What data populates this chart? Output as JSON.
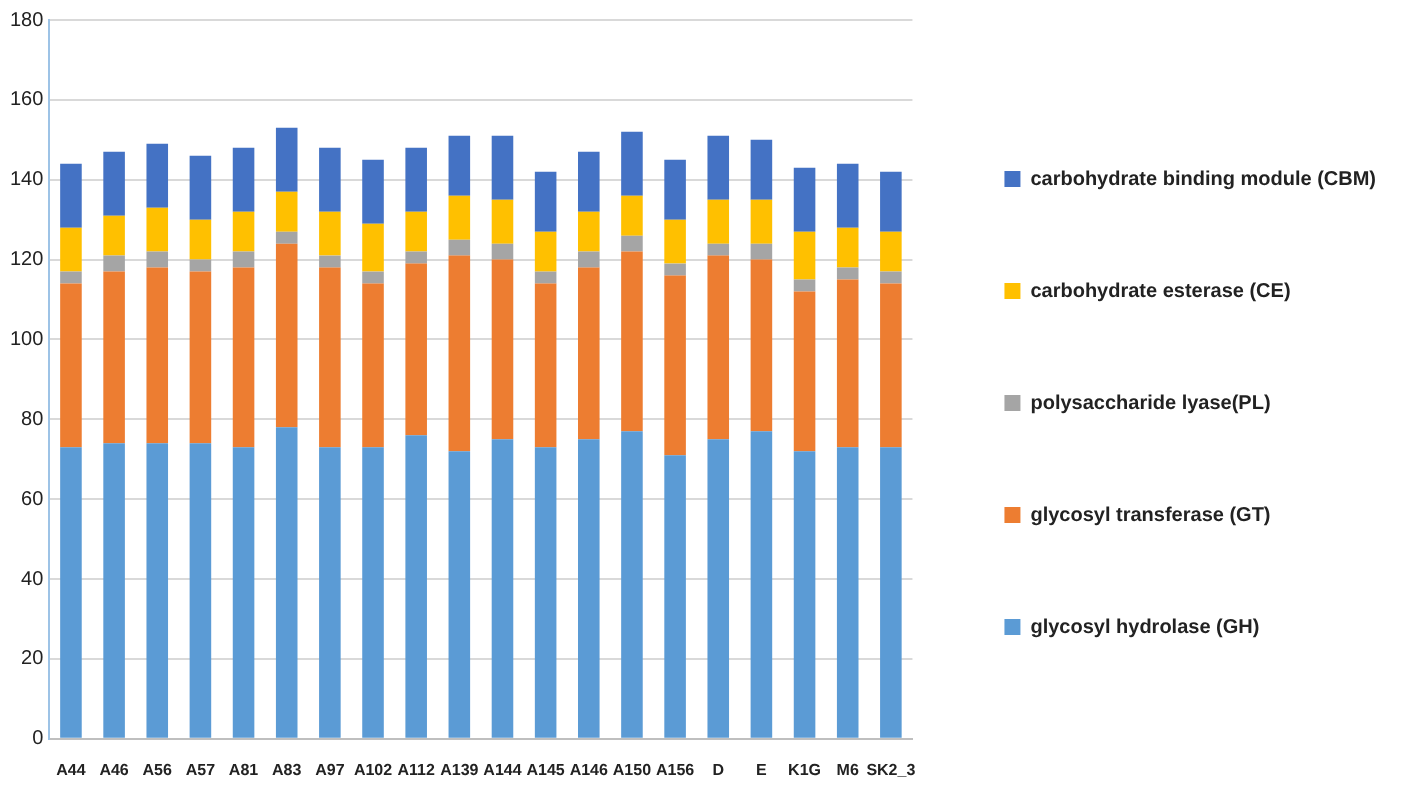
{
  "chart_data": {
    "type": "bar",
    "stacked": true,
    "categories": [
      "A44",
      "A46",
      "A56",
      "A57",
      "A81",
      "A83",
      "A97",
      "A102",
      "A112",
      "A139",
      "A144",
      "A145",
      "A146",
      "A150",
      "A156",
      "D",
      "E",
      "K1G",
      "M6",
      "SK2_3"
    ],
    "series": [
      {
        "name": "glycosyl hydrolase (GH)",
        "color": "#5b9bd5",
        "values": [
          73,
          74,
          74,
          74,
          73,
          78,
          73,
          73,
          76,
          72,
          75,
          73,
          75,
          77,
          71,
          75,
          77,
          72,
          73,
          73
        ]
      },
      {
        "name": "glycosyl transferase (GT)",
        "color": "#ed7d31",
        "values": [
          41,
          43,
          44,
          43,
          45,
          46,
          45,
          41,
          43,
          49,
          45,
          41,
          43,
          45,
          45,
          46,
          43,
          40,
          42,
          41
        ]
      },
      {
        "name": "polysaccharide lyase(PL)",
        "color": "#a5a5a5",
        "values": [
          3,
          4,
          4,
          3,
          4,
          3,
          3,
          3,
          3,
          4,
          4,
          3,
          4,
          4,
          3,
          3,
          4,
          3,
          3,
          3
        ]
      },
      {
        "name": "carbohydrate esterase (CE)",
        "color": "#ffc000",
        "values": [
          11,
          10,
          11,
          10,
          10,
          10,
          11,
          12,
          10,
          11,
          11,
          10,
          10,
          10,
          11,
          11,
          11,
          12,
          10,
          10
        ]
      },
      {
        "name": "carbohydrate binding module (CBM)",
        "color": "#4472c4",
        "values": [
          16,
          16,
          16,
          16,
          16,
          16,
          16,
          16,
          16,
          15,
          16,
          15,
          15,
          16,
          15,
          16,
          15,
          16,
          16,
          15
        ]
      }
    ],
    "ylim": [
      0,
      180
    ],
    "yticks": [
      0,
      20,
      40,
      60,
      80,
      100,
      120,
      140,
      160,
      180
    ],
    "grid": "y",
    "legend": "right"
  }
}
